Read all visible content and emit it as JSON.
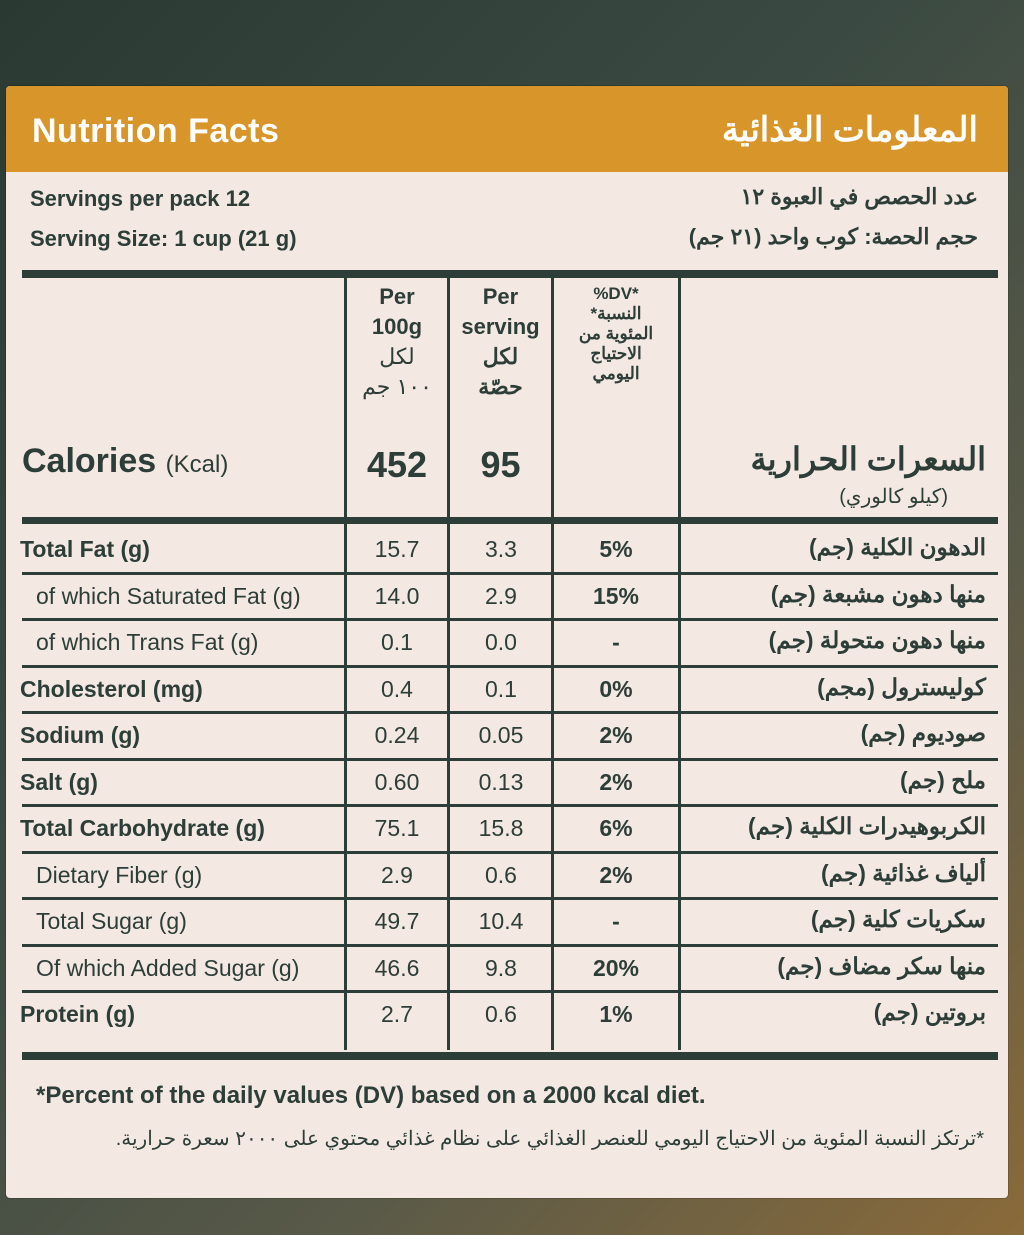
{
  "header": {
    "title_en": "Nutrition Facts",
    "title_ar": "المعلومات الغذائية"
  },
  "serving": {
    "per_pack_en": "Servings per pack 12",
    "size_en": "Serving Size: 1 cup   (21 g)",
    "per_pack_ar": "عدد الحصص في العبوة ١٢",
    "size_ar": "حجم الحصة: كوب واحد (٢١ جم)"
  },
  "columns": {
    "per100_en_1": "Per",
    "per100_en_2": "100g",
    "per100_ar_1": "لكل",
    "per100_ar_2": "١٠٠ جم",
    "perserv_en_1": "Per",
    "perserv_en_2": "serving",
    "perserv_ar_1": "لكل",
    "perserv_ar_2": "حصّة",
    "dv_1": "%DV*",
    "dv_2": "*النسبة",
    "dv_3": "المئوية من",
    "dv_4": "الاحتياج",
    "dv_5": "اليومي"
  },
  "calories": {
    "label_en": "Calories",
    "unit_en": "(Kcal)",
    "label_ar": "السعرات الحرارية",
    "unit_ar": "(كيلو كالوري)",
    "per100": "452",
    "perserving": "95"
  },
  "rows": [
    {
      "en": "Total Fat (g)",
      "ar": "الدهون الكلية (جم)",
      "v1": "15.7",
      "v2": "3.3",
      "dv": "5%"
    },
    {
      "en": "of which Saturated Fat (g)",
      "ar": "منها دهون مشبعة (جم)",
      "v1": "14.0",
      "v2": "2.9",
      "dv": "15%"
    },
    {
      "en": "of which Trans Fat (g)",
      "ar": "منها دهون متحولة (جم)",
      "v1": "0.1",
      "v2": "0.0",
      "dv": "-"
    },
    {
      "en": "Cholesterol (mg)",
      "ar": "كوليسترول (مجم)",
      "v1": "0.4",
      "v2": "0.1",
      "dv": "0%"
    },
    {
      "en": "Sodium (g)",
      "ar": "صوديوم (جم)",
      "v1": "0.24",
      "v2": "0.05",
      "dv": "2%"
    },
    {
      "en": "Salt (g)",
      "ar": "ملح (جم)",
      "v1": "0.60",
      "v2": "0.13",
      "dv": "2%"
    },
    {
      "en": "Total Carbohydrate (g)",
      "ar": "الكربوهيدرات الكلية (جم)",
      "v1": "75.1",
      "v2": "15.8",
      "dv": "6%"
    },
    {
      "en": "Dietary Fiber (g)",
      "ar": "ألياف غذائية (جم)",
      "v1": "2.9",
      "v2": "0.6",
      "dv": "2%"
    },
    {
      "en": "Total Sugar (g)",
      "ar": "سكريات كلية (جم)",
      "v1": "49.7",
      "v2": "10.4",
      "dv": "-"
    },
    {
      "en": "Of which Added Sugar (g)",
      "ar": "منها سكر مضاف (جم)",
      "v1": "46.6",
      "v2": "9.8",
      "dv": "20%"
    },
    {
      "en": "Protein (g)",
      "ar": "بروتين (جم)",
      "v1": "2.7",
      "v2": "0.6",
      "dv": "1%"
    }
  ],
  "footnote": {
    "en": "*Percent of the daily values (DV) based on a 2000 kcal diet.",
    "ar": "*ترتكز النسبة المئوية من الاحتياج اليومي للعنصر الغذائي على نظام غذائي محتوي على ٢٠٠٠ سعرة حرارية."
  }
}
